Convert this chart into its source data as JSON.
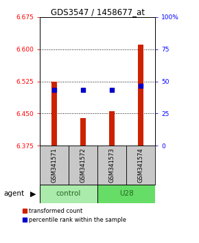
{
  "title": "GDS3547 / 1458677_at",
  "samples": [
    "GSM341571",
    "GSM341572",
    "GSM341573",
    "GSM341574"
  ],
  "groups": [
    "control",
    "control",
    "U28",
    "U28"
  ],
  "group_labels": [
    "control",
    "U28"
  ],
  "bar_bottom": 6.375,
  "bar_tops": [
    6.525,
    6.44,
    6.455,
    6.61
  ],
  "percentile_values": [
    6.505,
    6.505,
    6.505,
    6.515
  ],
  "ylim_left": [
    6.375,
    6.675
  ],
  "ylim_right": [
    0,
    100
  ],
  "yticks_left": [
    6.375,
    6.45,
    6.525,
    6.6,
    6.675
  ],
  "yticks_right": [
    0,
    25,
    50,
    75,
    100
  ],
  "bar_color": "#CC2200",
  "percentile_color": "#0000CC",
  "control_color": "#AAEAAA",
  "u28_color": "#66DD66",
  "gray_color": "#C8C8C8",
  "legend_items": [
    "transformed count",
    "percentile rank within the sample"
  ]
}
